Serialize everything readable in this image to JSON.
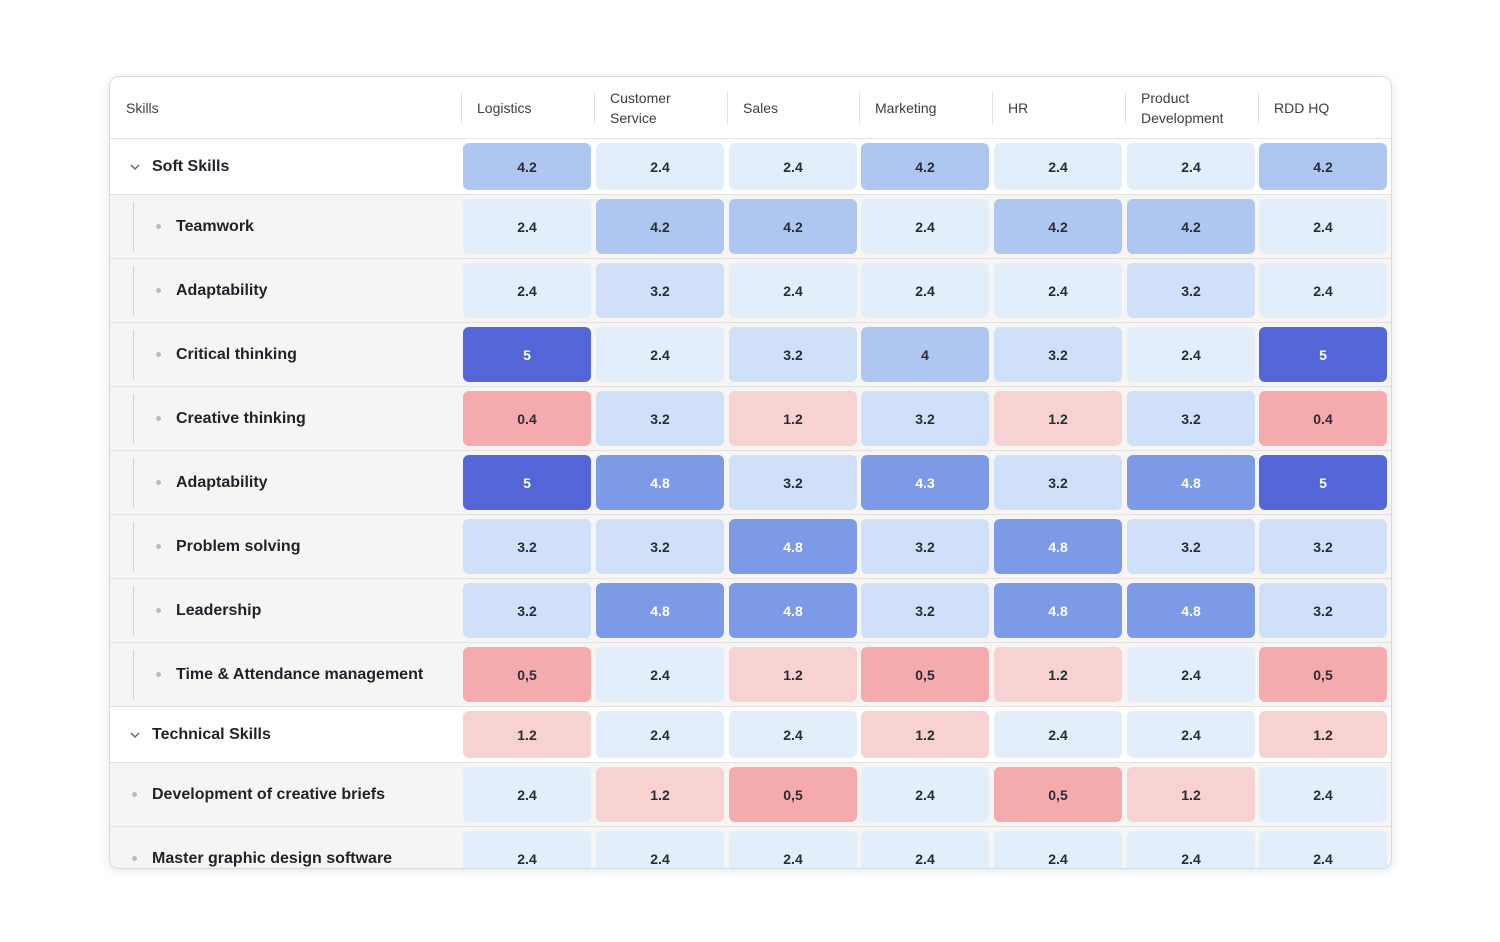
{
  "table": {
    "skills_header": "Skills",
    "columns": [
      [
        "Logistics"
      ],
      [
        "Customer",
        "Service"
      ],
      [
        "Sales"
      ],
      [
        "Marketing"
      ],
      [
        "HR"
      ],
      [
        "Product",
        "Development"
      ],
      [
        "RDD HQ"
      ]
    ],
    "rows": [
      {
        "type": "group",
        "label": "Soft Skills",
        "values": [
          "4.2",
          "2.4",
          "2.4",
          "4.2",
          "2.4",
          "2.4",
          "4.2"
        ]
      },
      {
        "type": "child",
        "label": "Teamwork",
        "values": [
          "2.4",
          "4.2",
          "4.2",
          "2.4",
          "4.2",
          "4.2",
          "2.4"
        ]
      },
      {
        "type": "child",
        "label": "Adaptability",
        "values": [
          "2.4",
          "3.2",
          "2.4",
          "2.4",
          "2.4",
          "3.2",
          "2.4"
        ]
      },
      {
        "type": "child",
        "label": "Critical thinking",
        "values": [
          "5",
          "2.4",
          "3.2",
          "4",
          "3.2",
          "2.4",
          "5"
        ]
      },
      {
        "type": "child",
        "label": "Creative thinking",
        "values": [
          "0.4",
          "3.2",
          "1.2",
          "3.2",
          "1.2",
          "3.2",
          "0.4"
        ]
      },
      {
        "type": "child",
        "label": "Adaptability",
        "values": [
          "5",
          "4.8",
          "3.2",
          "4.3",
          "3.2",
          "4.8",
          "5"
        ]
      },
      {
        "type": "child",
        "label": "Problem solving",
        "values": [
          "3.2",
          "3.2",
          "4.8",
          "3.2",
          "4.8",
          "3.2",
          "3.2"
        ]
      },
      {
        "type": "child",
        "label": "Leadership",
        "values": [
          "3.2",
          "4.8",
          "4.8",
          "3.2",
          "4.8",
          "4.8",
          "3.2"
        ]
      },
      {
        "type": "child",
        "label": "Time & Attendance management",
        "values": [
          "0,5",
          "2.4",
          "1.2",
          "0,5",
          "1.2",
          "2.4",
          "0,5"
        ]
      },
      {
        "type": "group",
        "label": "Technical Skills",
        "values": [
          "1.2",
          "2.4",
          "2.4",
          "1.2",
          "2.4",
          "2.4",
          "1.2"
        ]
      },
      {
        "type": "item",
        "label": "Development of creative briefs",
        "values": [
          "2.4",
          "1.2",
          "0,5",
          "2.4",
          "0,5",
          "1.2",
          "2.4"
        ]
      },
      {
        "type": "item",
        "label": "Master graphic design software",
        "values": [
          "2.4",
          "2.4",
          "2.4",
          "2.4",
          "2.4",
          "2.4",
          "2.4"
        ]
      }
    ]
  },
  "colors": {
    "blue_darkest": "#5567d8",
    "blue_dark": "#7d9ae6",
    "blue_mid": "#adc7f1",
    "blue_light": "#cfe0f8",
    "blue_lightest": "#e3eefb",
    "red_mid": "#f5aaad",
    "red_light": "#f8d1d1"
  }
}
